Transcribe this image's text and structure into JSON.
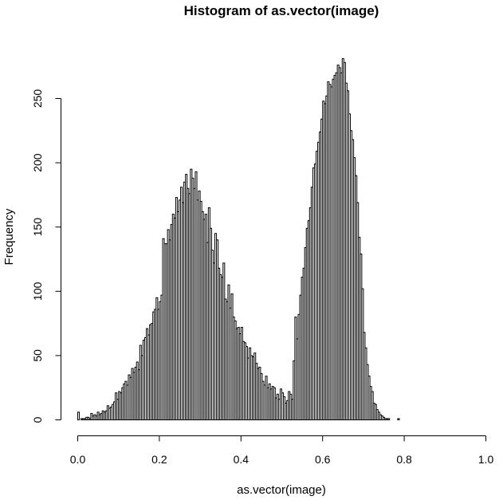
{
  "chart_data": {
    "type": "bar",
    "subtype": "histogram",
    "title": "Histogram of as.vector(image)",
    "xlabel": "as.vector(image)",
    "ylabel": "Frequency",
    "xlim": [
      0,
      1
    ],
    "ylim": [
      0,
      250
    ],
    "xticks": [
      "0.0",
      "0.2",
      "0.4",
      "0.6",
      "0.8",
      "1.0"
    ],
    "yticks": [
      "0",
      "50",
      "100",
      "150",
      "200",
      "250"
    ],
    "bin_width": 0.004,
    "bin_start": 0.0,
    "grid": false,
    "legend": "none",
    "bar_fill": "#ffffff",
    "bar_stroke": "#000000",
    "counts": [
      6,
      0,
      1,
      1,
      1,
      2,
      2,
      1,
      5,
      3,
      4,
      3,
      6,
      4,
      5,
      7,
      6,
      7,
      11,
      9,
      10,
      12,
      14,
      21,
      16,
      22,
      21,
      25,
      28,
      30,
      27,
      35,
      33,
      40,
      37,
      41,
      45,
      39,
      58,
      50,
      62,
      64,
      71,
      66,
      74,
      75,
      84,
      86,
      95,
      86,
      92,
      97,
      141,
      137,
      137,
      148,
      140,
      152,
      160,
      157,
      173,
      162,
      171,
      181,
      169,
      185,
      191,
      180,
      176,
      195,
      188,
      180,
      193,
      171,
      178,
      170,
      162,
      156,
      160,
      138,
      165,
      149,
      132,
      122,
      145,
      140,
      118,
      113,
      111,
      122,
      94,
      92,
      105,
      87,
      98,
      80,
      77,
      71,
      72,
      67,
      72,
      61,
      60,
      57,
      48,
      56,
      50,
      49,
      52,
      44,
      40,
      41,
      36,
      30,
      27,
      34,
      25,
      28,
      24,
      26,
      25,
      17,
      20,
      16,
      24,
      21,
      18,
      13,
      15,
      22,
      20,
      16,
      46,
      80,
      63,
      82,
      97,
      111,
      118,
      134,
      149,
      155,
      165,
      181,
      196,
      199,
      209,
      216,
      224,
      234,
      248,
      246,
      252,
      263,
      261,
      259,
      265,
      268,
      270,
      276,
      274,
      270,
      281,
      278,
      262,
      256,
      238,
      225,
      218,
      204,
      190,
      169,
      142,
      129,
      102,
      68,
      56,
      43,
      34,
      26,
      22,
      13,
      12,
      8,
      6,
      4,
      3,
      2,
      1,
      1,
      1,
      0,
      0,
      0,
      0,
      0,
      1,
      0,
      0,
      0,
      0,
      0,
      0,
      0,
      0,
      0,
      0,
      0,
      0,
      0,
      0,
      0,
      0,
      0,
      0,
      0,
      0,
      0,
      0,
      0,
      0,
      0,
      0,
      0,
      0,
      0,
      0,
      0,
      0,
      0,
      0,
      0,
      0,
      0,
      0,
      0,
      0,
      0,
      0,
      0,
      0,
      0,
      0,
      0,
      0,
      0,
      0,
      0,
      0,
      0,
      0,
      0,
      0,
      0,
      0,
      0
    ]
  }
}
